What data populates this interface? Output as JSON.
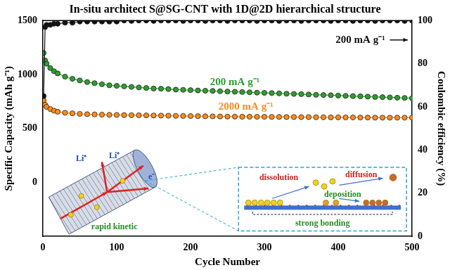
{
  "chart_data": {
    "type": "line",
    "title": "In-situ architect S@SG-CNT with 1D@2D hierarchical structure",
    "x_label": "Cycle Number",
    "y_label": "Specific Capacity (mAh g⁻¹)",
    "y2_label": "Coulombic efficiency (%)",
    "x": [
      1,
      3,
      5,
      10,
      15,
      20,
      30,
      40,
      50,
      60,
      70,
      80,
      90,
      100,
      110,
      120,
      130,
      140,
      150,
      160,
      170,
      180,
      190,
      200,
      210,
      220,
      230,
      240,
      250,
      260,
      270,
      280,
      290,
      300,
      310,
      320,
      330,
      340,
      350,
      360,
      370,
      380,
      390,
      400,
      410,
      420,
      430,
      440,
      450,
      460,
      470,
      480,
      490,
      500
    ],
    "xlim": [
      0,
      500
    ],
    "xticks": [
      0,
      100,
      200,
      300,
      400,
      500
    ],
    "ylim": [
      -500,
      1500
    ],
    "yticks": [
      0,
      500,
      1000,
      1500
    ],
    "y2lim": [
      0,
      100
    ],
    "y2ticks": [
      0,
      20,
      40,
      60,
      80,
      100
    ],
    "grid": false,
    "series": [
      {
        "name": "200 mA g⁻¹",
        "color": "#111111",
        "marker": "circle",
        "axis": "y2",
        "values": [
          65,
          97,
          98,
          98,
          98.5,
          98.5,
          99,
          99,
          99.5,
          99.5,
          99.5,
          99.5,
          99.5,
          99.5,
          100,
          99.8,
          100,
          100,
          99.8,
          100,
          100,
          100,
          99.8,
          100,
          100,
          99.8,
          100,
          100,
          99.8,
          100,
          100,
          100,
          99.8,
          100,
          100,
          99.8,
          100,
          100,
          99.8,
          100,
          100,
          100,
          99.8,
          100,
          100,
          99.8,
          100,
          100,
          99.8,
          100,
          100,
          100,
          99.8,
          100
        ]
      },
      {
        "name": "200 mA g⁻¹",
        "color": "#2e9e2e",
        "marker": "circle",
        "values": [
          1200,
          1130,
          1100,
          1060,
          1030,
          1010,
          980,
          960,
          945,
          930,
          920,
          910,
          900,
          895,
          890,
          885,
          880,
          875,
          870,
          868,
          865,
          860,
          858,
          855,
          852,
          850,
          848,
          845,
          842,
          840,
          838,
          835,
          832,
          830,
          828,
          825,
          822,
          820,
          818,
          815,
          812,
          810,
          808,
          805,
          802,
          800,
          798,
          795,
          792,
          790,
          788,
          785,
          783,
          780
        ]
      },
      {
        "name": "2000 mA g⁻¹",
        "color": "#ff8c1a",
        "marker": "circle",
        "values": [
          760,
          720,
          700,
          680,
          665,
          655,
          645,
          640,
          635,
          632,
          630,
          628,
          626,
          625,
          624,
          623,
          622,
          621,
          620,
          619,
          618,
          617,
          616,
          615,
          614,
          613,
          612,
          611,
          610,
          610,
          609,
          609,
          608,
          608,
          607,
          607,
          606,
          606,
          605,
          605,
          604,
          604,
          603,
          603,
          602,
          602,
          601,
          601,
          600,
          600,
          600,
          600,
          600,
          600
        ]
      }
    ],
    "annotations": [
      {
        "text": "Li⁺",
        "color": "#1f4fbf"
      },
      {
        "text": "Li⁺",
        "color": "#1f4fbf"
      },
      {
        "text": "e⁻",
        "color": "#1f4fbf"
      },
      {
        "text": "rapid kinetic",
        "color": "#1f8f1f"
      },
      {
        "text": "dissolution",
        "color": "#d42020"
      },
      {
        "text": "diffusion",
        "color": "#d42020"
      },
      {
        "text": "deposition",
        "color": "#1f8f1f"
      },
      {
        "text": "strong bonding",
        "color": "#1f8f1f"
      }
    ]
  }
}
